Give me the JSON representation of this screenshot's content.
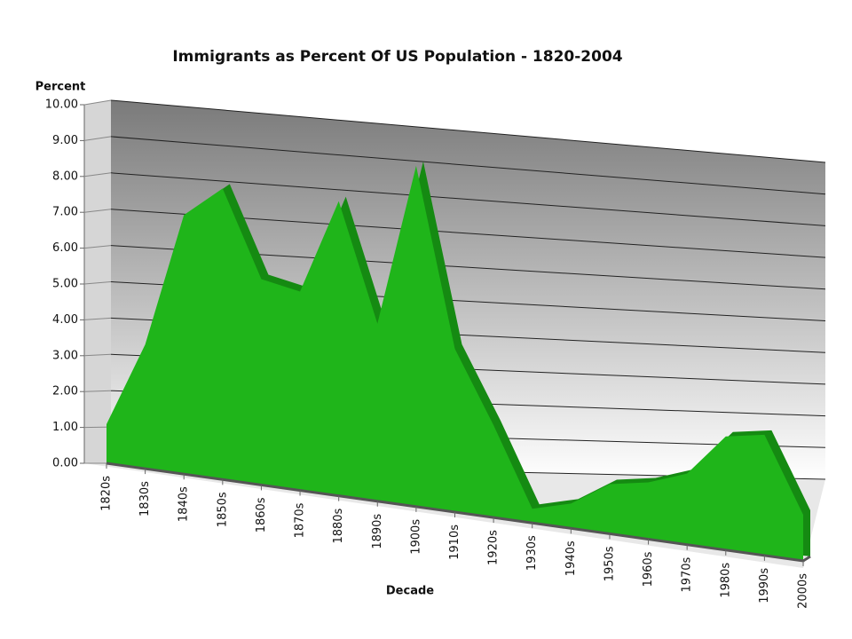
{
  "chart_data": {
    "type": "area3d",
    "title": "Immigrants as Percent Of US Population - 1820-2004",
    "y_label": "Percent",
    "x_label": "Decade",
    "categories": [
      "1820s",
      "1830s",
      "1840s",
      "1850s",
      "1860s",
      "1870s",
      "1880s",
      "1890s",
      "1900s",
      "1910s",
      "1920s",
      "1930s",
      "1940s",
      "1950s",
      "1960s",
      "1970s",
      "1980s",
      "1990s",
      "2000s"
    ],
    "values": [
      1.1,
      3.5,
      7.3,
      8.2,
      5.8,
      5.6,
      8.3,
      5.0,
      9.6,
      4.6,
      2.6,
      0.4,
      0.7,
      1.4,
      1.6,
      2.0,
      3.2,
      3.4,
      1.3
    ],
    "color": "#1fb51a",
    "side_color": "#158a12",
    "ylim": [
      0,
      10
    ],
    "yticks": [
      {
        "value": 0,
        "label": "0.00"
      },
      {
        "value": 1,
        "label": "1.00"
      },
      {
        "value": 2,
        "label": "2.00"
      },
      {
        "value": 3,
        "label": "3.00"
      },
      {
        "value": 4,
        "label": "4.00"
      },
      {
        "value": 5,
        "label": "5.00"
      },
      {
        "value": 6,
        "label": "6.00"
      },
      {
        "value": 7,
        "label": "7.00"
      },
      {
        "value": 8,
        "label": "8.00"
      },
      {
        "value": 9,
        "label": "9.00"
      },
      {
        "value": 10,
        "label": "10.00"
      }
    ],
    "grid": true
  }
}
